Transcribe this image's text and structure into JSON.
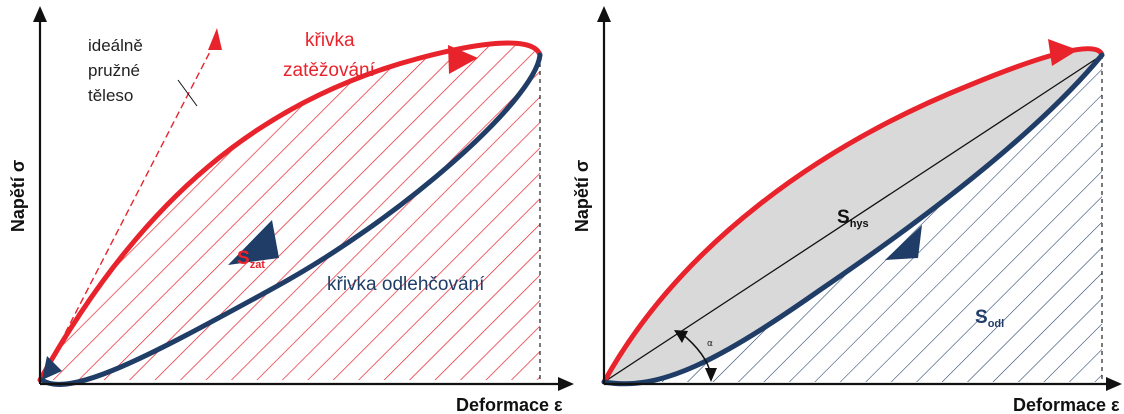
{
  "left_panel": {
    "y_axis_label": "Napětí σ",
    "x_axis_label": "Deformace ε",
    "elastic_label": {
      "line1": "ideálně",
      "line2": "pružné",
      "line3": "těleso"
    },
    "loading_curve_label": {
      "line1": "křivka",
      "line2": "zatěžování"
    },
    "unloading_curve_label": "křivka odlehčování",
    "loading_area_label": {
      "main": "S",
      "sub": "zat"
    }
  },
  "right_panel": {
    "y_axis_label": "Napětí σ",
    "x_axis_label": "Deformace ε",
    "hysteresis_label": {
      "main": "S",
      "sub": "hys"
    },
    "unloading_area_label": {
      "main": "S",
      "sub": "odl"
    },
    "angle_label": "α"
  },
  "colors": {
    "loading": "#e8232c",
    "unloading": "#1f3d66",
    "hysteresis_fill": "#d9d9d9",
    "axis": "#111111",
    "text": "#222222"
  }
}
